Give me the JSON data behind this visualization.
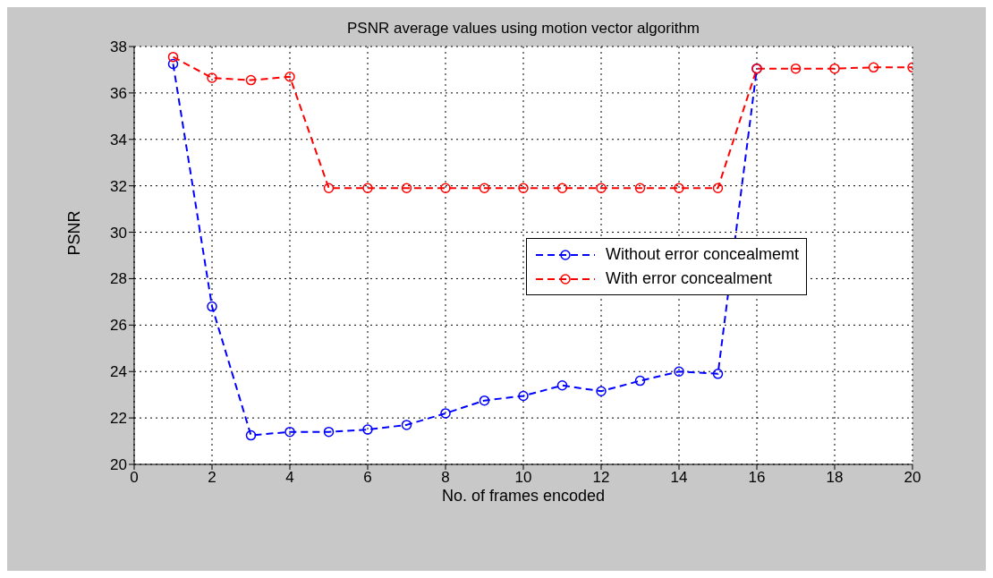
{
  "chart_data": {
    "type": "line",
    "title": "PSNR average values using motion vector algorithm",
    "xlabel": "No. of frames encoded",
    "ylabel": "PSNR",
    "x": [
      1,
      2,
      3,
      4,
      5,
      6,
      7,
      8,
      9,
      10,
      11,
      12,
      13,
      14,
      15,
      16,
      17,
      18,
      19,
      20
    ],
    "series": [
      {
        "name": "Without error concealmemt",
        "color": "#0000ff",
        "values": [
          37.25,
          26.8,
          21.25,
          21.4,
          21.4,
          21.5,
          21.7,
          22.2,
          22.75,
          22.95,
          23.4,
          23.15,
          23.6,
          24.0,
          23.9,
          37.05,
          null,
          null,
          null,
          null
        ]
      },
      {
        "name": "With error concealment",
        "color": "#ff0000",
        "values": [
          37.55,
          36.65,
          36.55,
          36.7,
          31.9,
          31.9,
          31.9,
          31.9,
          31.9,
          31.9,
          31.9,
          31.9,
          31.9,
          31.9,
          31.9,
          37.05,
          37.05,
          37.05,
          37.1,
          37.1
        ]
      }
    ],
    "xlim": [
      0,
      20
    ],
    "xticks": [
      0,
      2,
      4,
      6,
      8,
      10,
      12,
      14,
      16,
      18,
      20
    ],
    "ylim": [
      20,
      38
    ],
    "yticks": [
      20,
      22,
      24,
      26,
      28,
      30,
      32,
      34,
      36,
      38
    ],
    "grid": true,
    "legend": "right",
    "marker": "circle",
    "line_style": "dashed"
  }
}
